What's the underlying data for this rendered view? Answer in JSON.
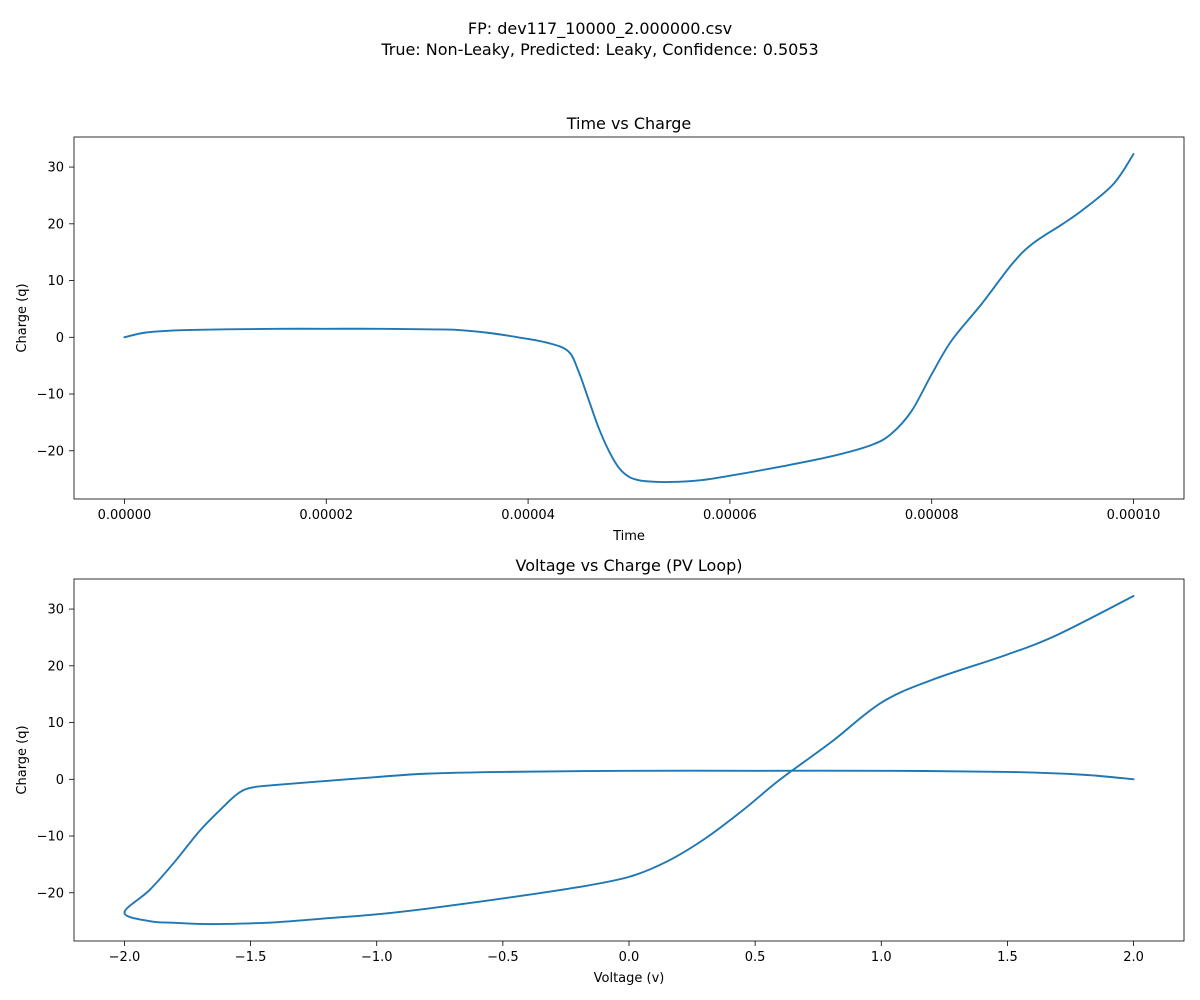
{
  "figure": {
    "suptitle_line1": "FP: dev117_10000_2.000000.csv",
    "suptitle_line2": "True: Non-Leaky, Predicted: Leaky, Confidence: 0.5053"
  },
  "colors": {
    "series": "#1f77b4"
  },
  "chart_data": [
    {
      "type": "line",
      "title": "Time vs Charge",
      "xlabel": "Time",
      "ylabel": "Charge (q)",
      "xlim": [
        -5e-06,
        0.000105
      ],
      "ylim": [
        -28.5,
        35.3
      ],
      "xticks": [
        0,
        2e-05,
        4e-05,
        6e-05,
        8e-05,
        0.0001
      ],
      "xtick_labels": [
        "0.00000",
        "0.00002",
        "0.00004",
        "0.00006",
        "0.00008",
        "0.00010"
      ],
      "yticks": [
        -20,
        -10,
        0,
        10,
        20,
        30
      ],
      "ytick_labels": [
        "−20",
        "−10",
        "0",
        "10",
        "20",
        "30"
      ],
      "grid": false,
      "series": [
        {
          "x": [
            0,
            2e-06,
            5e-06,
            1e-05,
            1.5e-05,
            2e-05,
            2.5e-05,
            3e-05,
            3.3e-05,
            3.6e-05,
            3.9e-05,
            4.2e-05,
            4.4e-05,
            4.5e-05,
            4.6e-05,
            4.7e-05,
            4.8e-05,
            4.9e-05,
            5e-05,
            5.1e-05,
            5.2e-05,
            5.4e-05,
            5.7e-05,
            6e-05,
            6.5e-05,
            7e-05,
            7.4e-05,
            7.6e-05,
            7.8e-05,
            8e-05,
            8.2e-05,
            8.5e-05,
            8.8e-05,
            9e-05,
            9.3e-05,
            9.5e-05,
            9.8e-05,
            0.0001
          ],
          "y": [
            0,
            0.8,
            1.2,
            1.4,
            1.5,
            1.5,
            1.5,
            1.4,
            1.3,
            0.8,
            0.0,
            -1.0,
            -2.5,
            -6.0,
            -11.0,
            -16.0,
            -20.0,
            -23.0,
            -24.6,
            -25.2,
            -25.4,
            -25.5,
            -25.2,
            -24.4,
            -22.8,
            -21.0,
            -19.0,
            -17.0,
            -13.0,
            -6.5,
            -0.5,
            6.0,
            13.0,
            16.5,
            20.0,
            22.5,
            27.0,
            32.3
          ]
        }
      ]
    },
    {
      "type": "line",
      "title": "Voltage vs Charge (PV Loop)",
      "xlabel": "Voltage (v)",
      "ylabel": "Charge (q)",
      "xlim": [
        -2.2,
        2.2
      ],
      "ylim": [
        -28.5,
        35.3
      ],
      "xticks": [
        -2.0,
        -1.5,
        -1.0,
        -0.5,
        0.0,
        0.5,
        1.0,
        1.5,
        2.0
      ],
      "xtick_labels": [
        "−2.0",
        "−1.5",
        "−1.0",
        "−0.5",
        "0.0",
        "0.5",
        "1.0",
        "1.5",
        "2.0"
      ],
      "yticks": [
        -20,
        -10,
        0,
        10,
        20,
        30
      ],
      "ytick_labels": [
        "−20",
        "−10",
        "0",
        "10",
        "20",
        "30"
      ],
      "grid": false,
      "series": [
        {
          "x": [
            2.0,
            1.8,
            1.5,
            1.0,
            0.5,
            0.0,
            -0.5,
            -0.8,
            -1.0,
            -1.2,
            -1.4,
            -1.5,
            -1.55,
            -1.6,
            -1.7,
            -1.8,
            -1.9,
            -2.0,
            -1.9,
            -1.8,
            -1.7,
            -1.6,
            -1.4,
            -1.2,
            -1.0,
            -0.8,
            -0.5,
            -0.2,
            0.0,
            0.15,
            0.3,
            0.45,
            0.6,
            0.8,
            1.0,
            1.2,
            1.5,
            1.7,
            2.0
          ],
          "y": [
            0,
            0.8,
            1.3,
            1.5,
            1.5,
            1.5,
            1.3,
            1.0,
            0.4,
            -0.3,
            -1.0,
            -1.5,
            -2.5,
            -4.5,
            -9.0,
            -14.5,
            -19.5,
            -23.5,
            -25.0,
            -25.3,
            -25.5,
            -25.5,
            -25.2,
            -24.5,
            -23.8,
            -22.8,
            -21.0,
            -19.0,
            -17.2,
            -14.5,
            -10.5,
            -5.5,
            0.0,
            6.5,
            13.5,
            17.5,
            22.0,
            25.5,
            32.3
          ]
        }
      ]
    }
  ]
}
